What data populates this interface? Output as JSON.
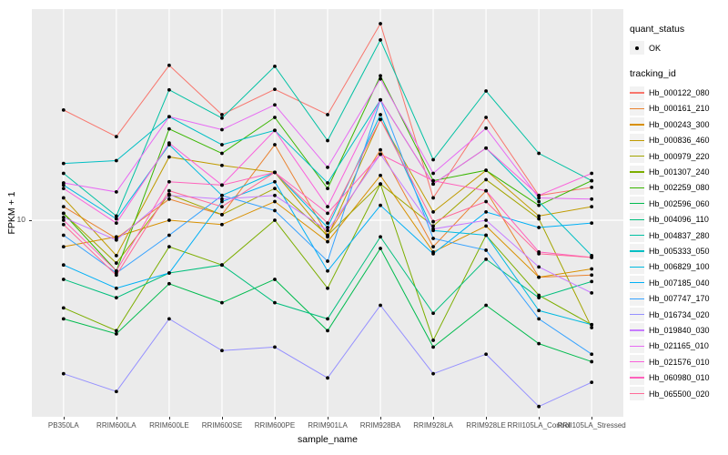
{
  "axes": {
    "x_title": "sample_name",
    "y_title": "FPKM + 1",
    "y_tick_label": "10"
  },
  "legend": {
    "quant_title": "quant_status",
    "quant_items": [
      {
        "label": "OK",
        "marker": "black-point"
      }
    ],
    "tracking_title": "tracking_id"
  },
  "colors": {
    "panel_bg": "#EBEBEB",
    "grid": "#FFFFFF",
    "axis_text": "#4D4D4D",
    "tick": "#333333",
    "point": "#000000",
    "legend_key_bg": "#F2F2F2"
  },
  "chart_data": {
    "type": "line",
    "title": "",
    "xlabel": "sample_name",
    "ylabel": "FPKM + 1",
    "y_scale": "log10",
    "y_ticks": [
      10
    ],
    "ylim": [
      2.5,
      44
    ],
    "grid": true,
    "legend_position": "right",
    "point_marker": "black dot (quant_status = OK) at every sample",
    "categories": [
      "PB350LA",
      "RRIM600LA",
      "RRIM600LE",
      "RRIM600SE",
      "RRIM600PE",
      "RRIM901LA",
      "RRIM928BA",
      "RRIM928LA",
      "RRIM928LE",
      "RRII105LA_Control",
      "RRII105LA_Stressed"
    ],
    "series": [
      {
        "name": "Hb_000122_080",
        "color": "#F8766D",
        "values": [
          21.7,
          18.0,
          29.7,
          21.0,
          25.1,
          21.0,
          39.8,
          11.7,
          20.6,
          11.9,
          12.6
        ]
      },
      {
        "name": "Hb_000161_210",
        "color": "#EA8331",
        "values": [
          11.0,
          8.8,
          11.6,
          10.4,
          17.0,
          9.0,
          16.4,
          8.3,
          12.3,
          6.7,
          6.8
        ]
      },
      {
        "name": "Hb_000243_300",
        "color": "#D89000",
        "values": [
          8.3,
          8.9,
          10.0,
          9.7,
          11.4,
          8.6,
          13.7,
          8.0,
          9.6,
          6.7,
          7.1
        ]
      },
      {
        "name": "Hb_000836_460",
        "color": "#C09B00",
        "values": [
          11.7,
          7.8,
          15.6,
          14.7,
          14.0,
          8.9,
          20.3,
          10.6,
          14.2,
          10.3,
          11.0
        ]
      },
      {
        "name": "Hb_000979_220",
        "color": "#A3A500",
        "values": [
          10.5,
          7.4,
          12.0,
          10.4,
          12.5,
          9.0,
          12.9,
          9.6,
          13.3,
          10.1,
          4.7
        ]
      },
      {
        "name": "Hb_001307_240",
        "color": "#7CAE00",
        "values": [
          5.4,
          4.6,
          8.3,
          7.3,
          10.0,
          6.2,
          12.9,
          4.3,
          9.0,
          5.9,
          4.8
        ]
      },
      {
        "name": "Hb_002259_080",
        "color": "#39B600",
        "values": [
          10.5,
          7.0,
          19.0,
          16.0,
          20.6,
          12.5,
          27.6,
          13.2,
          14.2,
          11.1,
          13.2
        ]
      },
      {
        "name": "Hb_002596_060",
        "color": "#00BB4E",
        "values": [
          5.0,
          4.5,
          6.4,
          5.6,
          6.6,
          4.6,
          8.2,
          4.1,
          5.5,
          4.2,
          3.7
        ]
      },
      {
        "name": "Hb_004096_110",
        "color": "#00BF7D",
        "values": [
          6.6,
          5.8,
          6.9,
          7.3,
          5.6,
          5.0,
          8.9,
          5.2,
          7.6,
          5.8,
          6.5
        ]
      },
      {
        "name": "Hb_004837_280",
        "color": "#00C1A3",
        "values": [
          13.9,
          10.3,
          25.0,
          20.5,
          29.5,
          17.5,
          35.5,
          15.3,
          24.8,
          16.0,
          13.2
        ]
      },
      {
        "name": "Hb_005333_050",
        "color": "#00BFC4",
        "values": [
          14.9,
          15.2,
          20.7,
          17.0,
          18.8,
          13.0,
          23.3,
          12.9,
          16.6,
          11.4,
          7.8
        ]
      },
      {
        "name": "Hb_006829_100",
        "color": "#00BAE0",
        "values": [
          12.8,
          10.1,
          17.0,
          11.9,
          14.0,
          9.5,
          21.0,
          9.3,
          9.0,
          5.3,
          4.8
        ]
      },
      {
        "name": "Hb_007185_040",
        "color": "#00B0F6",
        "values": [
          7.3,
          6.2,
          6.9,
          11.4,
          13.1,
          7.0,
          11.1,
          7.9,
          10.6,
          9.5,
          9.8
        ]
      },
      {
        "name": "Hb_007747_170",
        "color": "#35A2FF",
        "values": [
          9.0,
          6.9,
          9.0,
          11.9,
          10.7,
          7.5,
          23.3,
          8.8,
          8.1,
          5.0,
          3.9
        ]
      },
      {
        "name": "Hb_016734_020",
        "color": "#9590FF",
        "values": [
          3.4,
          3.0,
          5.0,
          4.0,
          4.1,
          3.3,
          5.5,
          3.4,
          3.9,
          2.7,
          3.2
        ]
      },
      {
        "name": "Hb_019840_030",
        "color": "#C77CFF",
        "values": [
          10.2,
          8.7,
          11.9,
          11.6,
          11.9,
          9.3,
          15.9,
          9.4,
          10.0,
          7.2,
          6.0
        ]
      },
      {
        "name": "Hb_021165_010",
        "color": "#E76BF3",
        "values": [
          13.0,
          12.2,
          20.7,
          18.9,
          22.5,
          14.5,
          27.0,
          13.9,
          19.1,
          11.7,
          11.6
        ]
      },
      {
        "name": "Hb_021576_010",
        "color": "#FA62DB",
        "values": [
          12.5,
          9.8,
          17.2,
          12.8,
          18.8,
          11.0,
          23.3,
          12.9,
          16.6,
          11.9,
          13.9
        ]
      },
      {
        "name": "Hb_060980_010",
        "color": "#FF62BC",
        "values": [
          10.0,
          7.0,
          13.1,
          12.8,
          14.0,
          10.5,
          15.9,
          13.2,
          12.3,
          8.0,
          7.7
        ]
      },
      {
        "name": "Hb_065500_020",
        "color": "#FF6A98",
        "values": [
          9.7,
          6.8,
          12.3,
          11.0,
          14.0,
          9.8,
          20.3,
          9.9,
          11.4,
          7.9,
          7.7
        ]
      }
    ]
  }
}
